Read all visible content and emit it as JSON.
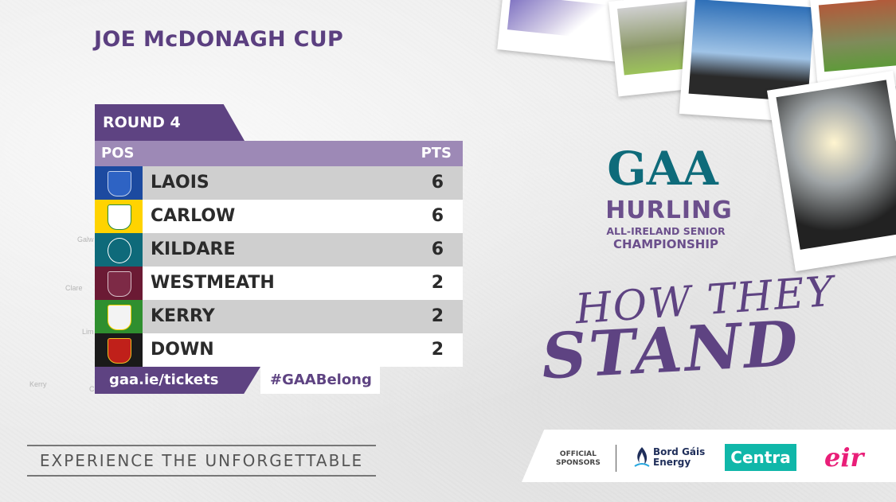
{
  "title": "JOE McDONAGH CUP",
  "round": "ROUND 4",
  "table": {
    "pos_label": "POS",
    "pts_label": "PTS",
    "rows": [
      {
        "team": "LAOIS",
        "pts": "6",
        "crest_colors": [
          "#1c4aa0",
          "#ffffff"
        ]
      },
      {
        "team": "CARLOW",
        "pts": "6",
        "crest_colors": [
          "#ffd300",
          "#2a8a3a"
        ]
      },
      {
        "team": "KILDARE",
        "pts": "6",
        "crest_colors": [
          "#0e6a7a",
          "#ffffff"
        ]
      },
      {
        "team": "WESTMEATH",
        "pts": "2",
        "crest_colors": [
          "#6b1a34",
          "#ffffff"
        ]
      },
      {
        "team": "KERRY",
        "pts": "2",
        "crest_colors": [
          "#2f8f2f",
          "#ffd400"
        ]
      },
      {
        "team": "DOWN",
        "pts": "2",
        "crest_colors": [
          "#1a1a1a",
          "#c0201a"
        ]
      }
    ]
  },
  "footer": {
    "tickets": "gaa.ie/tickets",
    "hashtag": "#GAABelong"
  },
  "tagline": "EXPERIENCE THE UNFORGETTABLE",
  "brand": {
    "logo_text": "GAA",
    "hurling": "HURLING",
    "all_ireland": "ALL-IRELAND SENIOR",
    "championship": "CHAMPIONSHIP",
    "how_they": "HOW THEY",
    "stand": "STAND"
  },
  "sponsors": {
    "label_line1": "OFFICIAL",
    "label_line2": "SPONSORS",
    "bge_line1": "Bord Gáis",
    "bge_line2": "Energy",
    "centra": "Centra",
    "eir": "eir"
  },
  "map_labels": [
    "Galw",
    "Clare",
    "Lim",
    "Kerry",
    "Co"
  ],
  "colors": {
    "purple": "#5e4382",
    "header_purple": "#9d89b6",
    "row_grey": "#cfcfcf",
    "gaa_teal": "#0e6b7a",
    "centra_teal": "#10b7a9",
    "eir_pink": "#e91e78"
  }
}
